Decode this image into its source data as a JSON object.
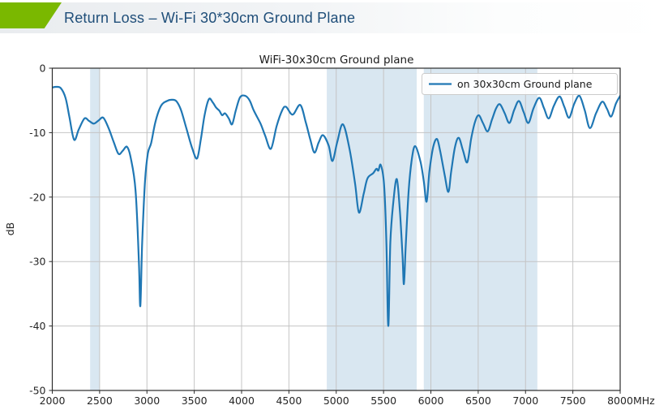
{
  "header": {
    "title": "Return Loss – Wi-Fi 30*30cm Ground Plane",
    "accent_color": "#7ab800",
    "title_color": "#1f4e79"
  },
  "chart": {
    "title": "WiFi-30x30cm Ground plane",
    "ylabel": "dB",
    "x_unit": "MHz",
    "legend_label": "on 30x30cm Ground plane"
  },
  "chart_data": {
    "type": "line",
    "title": "WiFi-30x30cm Ground plane",
    "xlabel": "MHz",
    "ylabel": "dB",
    "xlim": [
      2000,
      8000
    ],
    "ylim": [
      -50,
      0
    ],
    "x_ticks": [
      2000,
      2500,
      3000,
      3500,
      4000,
      4500,
      5000,
      5500,
      6000,
      6500,
      7000,
      7500,
      8000
    ],
    "y_ticks": [
      0,
      -10,
      -20,
      -30,
      -40,
      -50
    ],
    "grid": true,
    "grid_color": "#c4c4c4",
    "spine_color": "#2b2b2b",
    "tick_label_color": "#262626",
    "line_color": "#1f77b4",
    "band_color": "#d9e7f1",
    "legend_position": "upper right",
    "highlight_bands_mhz": [
      [
        2400,
        2500
      ],
      [
        4900,
        5850
      ],
      [
        5925,
        7125
      ]
    ],
    "series": [
      {
        "name": "on 30x30cm Ground plane",
        "x": [
          2000,
          2040,
          2090,
          2140,
          2180,
          2230,
          2280,
          2340,
          2390,
          2440,
          2490,
          2540,
          2600,
          2650,
          2700,
          2745,
          2790,
          2830,
          2880,
          2915,
          2930,
          2950,
          2980,
          3010,
          3045,
          3090,
          3150,
          3210,
          3260,
          3310,
          3360,
          3420,
          3480,
          3530,
          3570,
          3610,
          3655,
          3695,
          3730,
          3765,
          3795,
          3825,
          3865,
          3900,
          3940,
          3985,
          4040,
          4085,
          4130,
          4200,
          4250,
          4310,
          4370,
          4430,
          4470,
          4540,
          4620,
          4680,
          4725,
          4770,
          4815,
          4860,
          4920,
          4960,
          5010,
          5070,
          5140,
          5200,
          5240,
          5290,
          5330,
          5390,
          5425,
          5445,
          5470,
          5505,
          5530,
          5550,
          5572,
          5605,
          5640,
          5672,
          5700,
          5715,
          5733,
          5765,
          5800,
          5835,
          5890,
          5925,
          5955,
          5985,
          6025,
          6065,
          6100,
          6145,
          6185,
          6215,
          6255,
          6295,
          6340,
          6385,
          6425,
          6465,
          6505,
          6550,
          6600,
          6645,
          6690,
          6730,
          6780,
          6830,
          6880,
          6930,
          6980,
          7030,
          7085,
          7145,
          7195,
          7245,
          7300,
          7360,
          7410,
          7460,
          7515,
          7570,
          7625,
          7680,
          7745,
          7810,
          7860,
          7905,
          7955,
          8000
        ],
        "y": [
          -3.0,
          -2.9,
          -3.1,
          -4.6,
          -7.5,
          -11.1,
          -9.5,
          -7.8,
          -8.2,
          -8.6,
          -8.1,
          -7.7,
          -9.5,
          -11.5,
          -13.3,
          -12.8,
          -12.2,
          -14.0,
          -19.0,
          -30.0,
          -36.9,
          -27.0,
          -17.5,
          -13.2,
          -11.6,
          -8.3,
          -5.8,
          -5.1,
          -4.9,
          -5.1,
          -6.5,
          -9.5,
          -12.5,
          -14.0,
          -11.0,
          -7.2,
          -4.8,
          -5.3,
          -6.1,
          -6.6,
          -7.3,
          -7.0,
          -7.8,
          -8.7,
          -6.5,
          -4.5,
          -4.3,
          -5.0,
          -6.6,
          -8.6,
          -10.5,
          -12.5,
          -9.0,
          -6.5,
          -6.0,
          -7.2,
          -5.7,
          -8.5,
          -11.0,
          -13.1,
          -11.5,
          -10.4,
          -12.0,
          -14.4,
          -11.5,
          -8.7,
          -12.5,
          -18.0,
          -22.4,
          -19.5,
          -17.1,
          -16.3,
          -15.6,
          -15.9,
          -15.0,
          -18.0,
          -27.0,
          -40.0,
          -27.0,
          -20.5,
          -17.2,
          -22.0,
          -29.0,
          -33.5,
          -28.0,
          -19.0,
          -14.0,
          -12.1,
          -14.5,
          -17.5,
          -20.7,
          -16.0,
          -12.2,
          -11.0,
          -13.0,
          -16.5,
          -19.2,
          -16.0,
          -12.2,
          -10.8,
          -12.8,
          -14.6,
          -11.0,
          -8.4,
          -7.3,
          -8.5,
          -9.8,
          -8.0,
          -6.2,
          -5.6,
          -7.0,
          -8.5,
          -6.5,
          -5.1,
          -6.8,
          -8.5,
          -6.2,
          -4.6,
          -6.2,
          -7.8,
          -5.8,
          -4.4,
          -6.0,
          -7.7,
          -5.5,
          -4.3,
          -6.5,
          -9.3,
          -7.0,
          -5.2,
          -6.3,
          -7.5,
          -5.5,
          -4.3
        ]
      }
    ]
  }
}
